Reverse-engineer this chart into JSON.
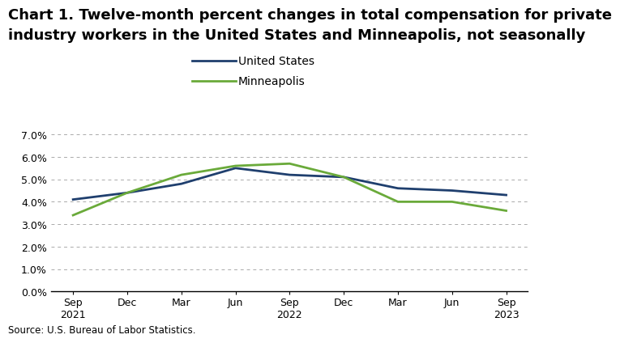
{
  "title_line1": "Chart 1. Twelve-month percent changes in total compensation for private",
  "title_line2": "industry workers in the United States and Minneapolis, not seasonally",
  "source": "Source: U.S. Bureau of Labor Statistics.",
  "x_labels": [
    "Sep\n2021",
    "Dec",
    "Mar",
    "Jun",
    "Sep\n2022",
    "Dec",
    "Mar",
    "Jun",
    "Sep\n2023"
  ],
  "us_values": [
    4.1,
    4.4,
    4.8,
    5.5,
    5.2,
    5.1,
    4.6,
    4.5,
    4.3
  ],
  "mpls_values": [
    3.4,
    4.4,
    5.2,
    5.6,
    5.7,
    5.1,
    4.0,
    4.0,
    3.6
  ],
  "us_color": "#1f3f6e",
  "mpls_color": "#6aaa3a",
  "us_label": "United States",
  "mpls_label": "Minneapolis",
  "ylim": [
    0.0,
    7.0
  ],
  "yticks": [
    0.0,
    1.0,
    2.0,
    3.0,
    4.0,
    5.0,
    6.0,
    7.0
  ],
  "line_width": 2.0,
  "background_color": "#ffffff",
  "grid_color": "#aaaaaa",
  "title_fontsize": 13,
  "tick_fontsize": 9,
  "legend_fontsize": 10,
  "source_fontsize": 8.5
}
